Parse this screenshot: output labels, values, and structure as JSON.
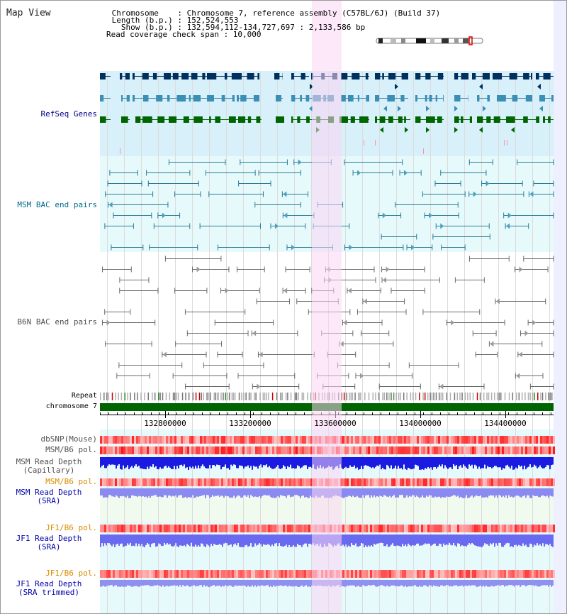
{
  "view_title": "Map View",
  "header": {
    "chromosome_line": " Chromosome    : Chromosome 7, reference assembly (C57BL/6J) (Build 37)",
    "length_line": " Length (b.p.) : 152,524,553",
    "show_line": "   Show (b.p.) : 132,594,112-134,727,697 : 2,133,586 bp",
    "coverage_line": "Read coverage check span : 10,000"
  },
  "labels": {
    "refseq": "RefSeq Genes",
    "msm_bac": "MSM BAC end pairs",
    "b6n_bac": "B6N BAC end pairs",
    "repeat": "Repeat",
    "chromosome": "chromosome 7",
    "dbsnp": "dbSNP(Mouse)",
    "msm_b6_pol_1": "MSM/B6 pol.",
    "msm_depth_cap_1": "MSM Read Depth",
    "msm_depth_cap_2": "(Capillary)",
    "msm_b6_pol_2": "MSM/B6 pol.",
    "msm_depth_sra_1": "MSM Read Depth",
    "msm_depth_sra_2": "(SRA)",
    "jf1_pol_1": "JF1/B6 pol.",
    "jf1_depth_sra_1": "JF1 Read Depth",
    "jf1_depth_sra_2": "(SRA)",
    "jf1_pol_2": "JF1/B6 pol.",
    "jf1_depth_trim_1": "JF1 Read Depth",
    "jf1_depth_trim_2": "(SRA trimmed)"
  },
  "axis_ticks": [
    "132800000",
    "133200000",
    "133600000",
    "134000000",
    "134400000"
  ],
  "colors": {
    "refseq_label": "#00008b",
    "msm_label": "#006b8b",
    "b6n_label": "#505050",
    "pol_orange": "#d98c00",
    "depth_blue": "#0000aa",
    "highlight": "#f9d6f3",
    "refseq_bg": "#d8f0fa",
    "msm_bg": "#e6fafc",
    "green_bg": "#f0faee",
    "gene_dark": "#00305f",
    "gene_mid": "#3b8fb5",
    "gene_green": "#006400",
    "chrom_bar": "#006400"
  }
}
